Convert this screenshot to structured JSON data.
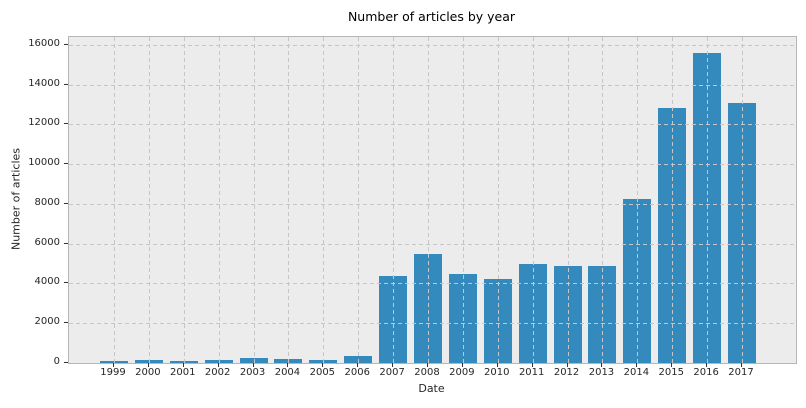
{
  "chart_data": {
    "type": "bar",
    "title": "Number of articles by year",
    "xlabel": "Date",
    "ylabel": "Number of articles",
    "categories": [
      "1999",
      "2000",
      "2001",
      "2002",
      "2003",
      "2004",
      "2005",
      "2006",
      "2007",
      "2008",
      "2009",
      "2010",
      "2011",
      "2012",
      "2013",
      "2014",
      "2015",
      "2016",
      "2017"
    ],
    "values": [
      85,
      150,
      100,
      160,
      270,
      190,
      135,
      370,
      4400,
      5480,
      4460,
      4240,
      5000,
      4900,
      4900,
      8230,
      12840,
      15610,
      13100
    ],
    "ylim": [
      0,
      16400
    ],
    "yticks": [
      0,
      2000,
      4000,
      6000,
      8000,
      10000,
      12000,
      14000,
      16000
    ],
    "grid": true,
    "grid_style": "dashed",
    "legend": "none",
    "bar_color": "#348abd",
    "plot_background": "#ececec",
    "grid_color": "#c6c6c6",
    "axis_border_color": "#b6b6b6",
    "text_color": "#262626"
  }
}
